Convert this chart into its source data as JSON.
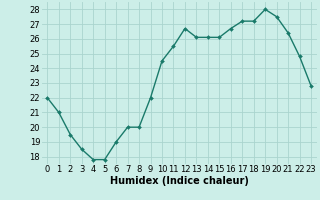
{
  "x": [
    0,
    1,
    2,
    3,
    4,
    5,
    6,
    7,
    8,
    9,
    10,
    11,
    12,
    13,
    14,
    15,
    16,
    17,
    18,
    19,
    20,
    21,
    22,
    23
  ],
  "y": [
    22,
    21,
    19.5,
    18.5,
    17.8,
    17.8,
    19,
    20,
    20,
    22,
    24.5,
    25.5,
    26.7,
    26.1,
    26.1,
    26.1,
    26.7,
    27.2,
    27.2,
    28,
    27.5,
    26.4,
    24.8,
    22.8
  ],
  "line_color": "#1a7a6a",
  "marker_color": "#1a7a6a",
  "bg_color": "#cceee8",
  "grid_color": "#aad4ce",
  "xlabel": "Humidex (Indice chaleur)",
  "ylim": [
    17.5,
    28.5
  ],
  "yticks": [
    18,
    19,
    20,
    21,
    22,
    23,
    24,
    25,
    26,
    27,
    28
  ],
  "xticks": [
    0,
    1,
    2,
    3,
    4,
    5,
    6,
    7,
    8,
    9,
    10,
    11,
    12,
    13,
    14,
    15,
    16,
    17,
    18,
    19,
    20,
    21,
    22,
    23
  ],
  "xlabel_fontsize": 7,
  "tick_fontsize": 6,
  "line_width": 1.0,
  "marker_size": 2.0
}
